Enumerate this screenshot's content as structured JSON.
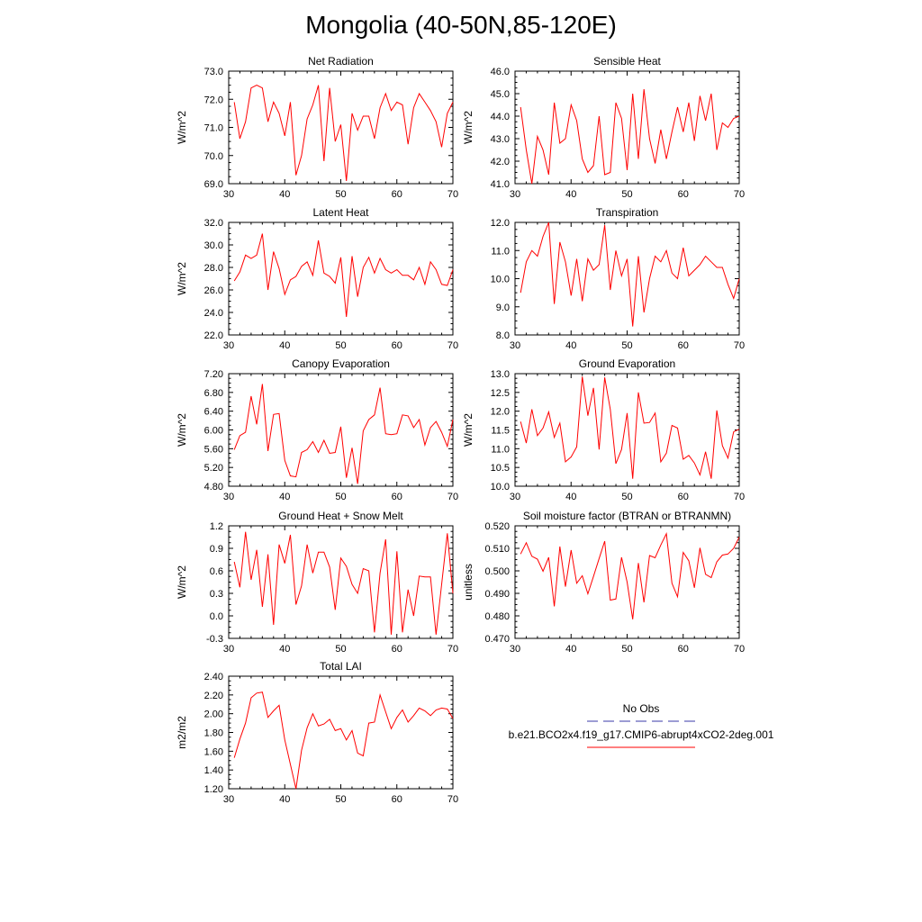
{
  "title": "Mongolia (40-50N,85-120E)",
  "legend": {
    "obs_label": "No Obs",
    "model_label": "b.e21.BCO2x4.f19_g17.CMIP6-abrupt4xCO2-2deg.001",
    "obs_color": "#3a3aa8",
    "model_color": "#ff0000"
  },
  "chart_data": [
    {
      "type": "line",
      "title": "Net Radiation",
      "ylabel": "W/m^2",
      "xlim": [
        30,
        70
      ],
      "ylim": [
        69.0,
        73.0
      ],
      "xticks": [
        30,
        40,
        50,
        60,
        70
      ],
      "yticks": [
        69.0,
        70.0,
        71.0,
        72.0,
        73.0
      ],
      "ydec": 1,
      "x": [
        31,
        32,
        33,
        34,
        35,
        36,
        37,
        38,
        39,
        40,
        41,
        42,
        43,
        44,
        45,
        46,
        47,
        48,
        49,
        50,
        51,
        52,
        53,
        54,
        55,
        56,
        57,
        58,
        59,
        60,
        61,
        62,
        63,
        64,
        65,
        66,
        67,
        68,
        69,
        70
      ],
      "series": [
        {
          "values": [
            71.9,
            70.6,
            71.2,
            72.4,
            72.5,
            72.4,
            71.2,
            71.9,
            71.5,
            70.7,
            71.9,
            69.3,
            70.0,
            71.3,
            71.8,
            72.5,
            69.8,
            72.4,
            70.5,
            71.1,
            69.1,
            71.5,
            70.9,
            71.4,
            71.4,
            70.6,
            71.7,
            72.2,
            71.6,
            71.9,
            71.8,
            70.4,
            71.7,
            72.2,
            71.9,
            71.6,
            71.2,
            70.3,
            71.5,
            71.9
          ]
        }
      ]
    },
    {
      "type": "line",
      "title": "Sensible Heat",
      "ylabel": "W/m^2",
      "xlim": [
        30,
        70
      ],
      "ylim": [
        41.0,
        46.0
      ],
      "xticks": [
        30,
        40,
        50,
        60,
        70
      ],
      "yticks": [
        41.0,
        42.0,
        43.0,
        44.0,
        45.0,
        46.0
      ],
      "ydec": 1,
      "x": [
        31,
        32,
        33,
        34,
        35,
        36,
        37,
        38,
        39,
        40,
        41,
        42,
        43,
        44,
        45,
        46,
        47,
        48,
        49,
        50,
        51,
        52,
        53,
        54,
        55,
        56,
        57,
        58,
        59,
        60,
        61,
        62,
        63,
        64,
        65,
        66,
        67,
        68,
        69,
        70
      ],
      "series": [
        {
          "values": [
            44.4,
            42.5,
            41.0,
            43.1,
            42.5,
            41.4,
            44.6,
            42.8,
            43.0,
            44.5,
            43.8,
            42.1,
            41.5,
            41.8,
            44.0,
            41.4,
            41.5,
            44.6,
            43.9,
            41.6,
            45.0,
            42.1,
            45.2,
            43.0,
            41.9,
            43.4,
            42.1,
            43.3,
            44.4,
            43.3,
            44.6,
            42.9,
            44.9,
            43.8,
            45.0,
            42.5,
            43.7,
            43.5,
            43.9,
            44.0
          ]
        }
      ]
    },
    {
      "type": "line",
      "title": "Latent Heat",
      "ylabel": "W/m^2",
      "xlim": [
        30,
        70
      ],
      "ylim": [
        22.0,
        32.0
      ],
      "xticks": [
        30,
        40,
        50,
        60,
        70
      ],
      "yticks": [
        22.0,
        24.0,
        26.0,
        28.0,
        30.0,
        32.0
      ],
      "ydec": 1,
      "x": [
        31,
        32,
        33,
        34,
        35,
        36,
        37,
        38,
        39,
        40,
        41,
        42,
        43,
        44,
        45,
        46,
        47,
        48,
        49,
        50,
        51,
        52,
        53,
        54,
        55,
        56,
        57,
        58,
        59,
        60,
        61,
        62,
        63,
        64,
        65,
        66,
        67,
        68,
        69,
        70
      ],
      "series": [
        {
          "values": [
            26.8,
            27.6,
            29.1,
            28.8,
            29.1,
            31.0,
            26.0,
            29.4,
            27.9,
            25.6,
            26.9,
            27.2,
            28.1,
            28.5,
            27.3,
            30.4,
            27.5,
            27.2,
            26.6,
            28.9,
            23.6,
            29.0,
            25.4,
            28.0,
            28.9,
            27.5,
            28.8,
            27.8,
            27.5,
            27.8,
            27.3,
            27.3,
            26.9,
            28.0,
            26.5,
            28.5,
            27.8,
            26.5,
            26.4,
            27.8
          ]
        }
      ]
    },
    {
      "type": "line",
      "title": "Transpiration",
      "ylabel": "",
      "xlim": [
        30,
        70
      ],
      "ylim": [
        8.0,
        12.0
      ],
      "xticks": [
        30,
        40,
        50,
        60,
        70
      ],
      "yticks": [
        8.0,
        9.0,
        10.0,
        11.0,
        12.0
      ],
      "ydec": 1,
      "x": [
        31,
        32,
        33,
        34,
        35,
        36,
        37,
        38,
        39,
        40,
        41,
        42,
        43,
        44,
        45,
        46,
        47,
        48,
        49,
        50,
        51,
        52,
        53,
        54,
        55,
        56,
        57,
        58,
        59,
        60,
        61,
        62,
        63,
        64,
        65,
        66,
        67,
        68,
        69,
        70
      ],
      "series": [
        {
          "values": [
            9.5,
            10.6,
            11.0,
            10.8,
            11.5,
            12.0,
            9.1,
            11.3,
            10.6,
            9.4,
            10.7,
            9.2,
            10.7,
            10.3,
            10.5,
            11.9,
            9.6,
            11.0,
            10.1,
            10.7,
            8.3,
            10.8,
            8.8,
            10.0,
            10.8,
            10.6,
            11.0,
            10.2,
            10.0,
            11.1,
            10.1,
            10.3,
            10.5,
            10.8,
            10.6,
            10.4,
            10.4,
            9.8,
            9.3,
            10.0
          ]
        }
      ]
    },
    {
      "type": "line",
      "title": "Canopy Evaporation",
      "ylabel": "W/m^2",
      "xlim": [
        30,
        70
      ],
      "ylim": [
        4.8,
        7.2
      ],
      "xticks": [
        30,
        40,
        50,
        60,
        70
      ],
      "yticks": [
        4.8,
        5.2,
        5.6,
        6.0,
        6.4,
        6.8,
        7.2
      ],
      "ydec": 2,
      "x": [
        31,
        32,
        33,
        34,
        35,
        36,
        37,
        38,
        39,
        40,
        41,
        42,
        43,
        44,
        45,
        46,
        47,
        48,
        49,
        50,
        51,
        52,
        53,
        54,
        55,
        56,
        57,
        58,
        59,
        60,
        61,
        62,
        63,
        64,
        65,
        66,
        67,
        68,
        69,
        70
      ],
      "series": [
        {
          "values": [
            5.58,
            5.88,
            5.95,
            6.72,
            6.12,
            6.98,
            5.55,
            6.33,
            6.35,
            5.35,
            5.02,
            5.0,
            5.52,
            5.58,
            5.75,
            5.52,
            5.78,
            5.5,
            5.52,
            6.07,
            4.98,
            5.62,
            4.85,
            5.98,
            6.22,
            6.32,
            6.9,
            5.92,
            5.9,
            5.92,
            6.32,
            6.3,
            6.05,
            6.22,
            5.68,
            6.05,
            6.18,
            5.95,
            5.65,
            6.22
          ]
        }
      ]
    },
    {
      "type": "line",
      "title": "Ground Evaporation",
      "ylabel": "W/m^2",
      "xlim": [
        30,
        70
      ],
      "ylim": [
        10.0,
        13.0
      ],
      "xticks": [
        30,
        40,
        50,
        60,
        70
      ],
      "yticks": [
        10.0,
        10.5,
        11.0,
        11.5,
        12.0,
        12.5,
        13.0
      ],
      "ydec": 1,
      "x": [
        31,
        32,
        33,
        34,
        35,
        36,
        37,
        38,
        39,
        40,
        41,
        42,
        43,
        44,
        45,
        46,
        47,
        48,
        49,
        50,
        51,
        52,
        53,
        54,
        55,
        56,
        57,
        58,
        59,
        60,
        61,
        62,
        63,
        64,
        65,
        66,
        67,
        68,
        69,
        70
      ],
      "series": [
        {
          "values": [
            11.72,
            11.15,
            12.05,
            11.35,
            11.55,
            11.98,
            11.3,
            11.68,
            10.65,
            10.78,
            11.05,
            12.92,
            11.88,
            12.62,
            10.98,
            12.9,
            12.05,
            10.6,
            10.98,
            11.95,
            10.2,
            12.5,
            11.68,
            11.7,
            11.95,
            10.65,
            10.88,
            11.62,
            11.55,
            10.72,
            10.82,
            10.62,
            10.3,
            10.92,
            10.2,
            12.02,
            11.08,
            10.75,
            11.45,
            11.52
          ]
        }
      ]
    },
    {
      "type": "line",
      "title": "Ground Heat + Snow Melt",
      "ylabel": "W/m^2",
      "xlim": [
        30,
        70
      ],
      "ylim": [
        -0.3,
        1.2
      ],
      "xticks": [
        30,
        40,
        50,
        60,
        70
      ],
      "yticks": [
        -0.3,
        0.0,
        0.3,
        0.6,
        0.9,
        1.2
      ],
      "ydec": 1,
      "x": [
        31,
        32,
        33,
        34,
        35,
        36,
        37,
        38,
        39,
        40,
        41,
        42,
        43,
        44,
        45,
        46,
        47,
        48,
        49,
        50,
        51,
        52,
        53,
        54,
        55,
        56,
        57,
        58,
        59,
        60,
        61,
        62,
        63,
        64,
        65,
        66,
        67,
        68,
        69,
        70
      ],
      "series": [
        {
          "values": [
            0.72,
            0.38,
            1.12,
            0.48,
            0.88,
            0.12,
            0.82,
            -0.12,
            0.95,
            0.7,
            1.08,
            0.15,
            0.4,
            0.95,
            0.57,
            0.85,
            0.85,
            0.65,
            0.08,
            0.77,
            0.66,
            0.42,
            0.3,
            0.63,
            0.6,
            -0.22,
            0.57,
            1.02,
            -0.25,
            0.86,
            -0.22,
            0.35,
            0.0,
            0.53,
            0.52,
            0.52,
            -0.25,
            0.42,
            1.1,
            0.3
          ]
        }
      ]
    },
    {
      "type": "line",
      "title": "Soil moisture factor (BTRAN or BTRANMN)",
      "ylabel": "unitless",
      "xlim": [
        30,
        70
      ],
      "ylim": [
        0.47,
        0.52
      ],
      "xticks": [
        30,
        40,
        50,
        60,
        70
      ],
      "yticks": [
        0.47,
        0.48,
        0.49,
        0.5,
        0.51,
        0.52
      ],
      "ydec": 3,
      "x": [
        31,
        32,
        33,
        34,
        35,
        36,
        37,
        38,
        39,
        40,
        41,
        42,
        43,
        44,
        45,
        46,
        47,
        48,
        49,
        50,
        51,
        52,
        53,
        54,
        55,
        56,
        57,
        58,
        59,
        60,
        61,
        62,
        63,
        64,
        65,
        66,
        67,
        68,
        69,
        70
      ],
      "series": [
        {
          "values": [
            0.5075,
            0.5125,
            0.5065,
            0.5052,
            0.4998,
            0.506,
            0.4842,
            0.5108,
            0.493,
            0.5092,
            0.4945,
            0.4978,
            0.4898,
            0.4975,
            0.5055,
            0.5132,
            0.487,
            0.4875,
            0.506,
            0.495,
            0.4785,
            0.5035,
            0.486,
            0.5068,
            0.5058,
            0.5115,
            0.5165,
            0.4945,
            0.4885,
            0.5082,
            0.5045,
            0.4925,
            0.5102,
            0.4985,
            0.497,
            0.504,
            0.507,
            0.5075,
            0.51,
            0.515
          ]
        }
      ]
    },
    {
      "type": "line",
      "title": "Total LAI",
      "ylabel": "m2/m2",
      "xlim": [
        30,
        70
      ],
      "ylim": [
        1.2,
        2.4
      ],
      "xticks": [
        30,
        40,
        50,
        60,
        70
      ],
      "yticks": [
        1.2,
        1.4,
        1.6,
        1.8,
        2.0,
        2.2,
        2.4
      ],
      "ydec": 2,
      "x": [
        31,
        32,
        33,
        34,
        35,
        36,
        37,
        38,
        39,
        40,
        41,
        42,
        43,
        44,
        45,
        46,
        47,
        48,
        49,
        50,
        51,
        52,
        53,
        54,
        55,
        56,
        57,
        58,
        59,
        60,
        61,
        62,
        63,
        64,
        65,
        66,
        67,
        68,
        69,
        70
      ],
      "series": [
        {
          "values": [
            1.53,
            1.73,
            1.9,
            2.17,
            2.22,
            2.23,
            1.96,
            2.03,
            2.09,
            1.72,
            1.46,
            1.2,
            1.61,
            1.85,
            2.0,
            1.87,
            1.89,
            1.94,
            1.82,
            1.84,
            1.72,
            1.82,
            1.58,
            1.55,
            1.9,
            1.91,
            2.2,
            2.02,
            1.84,
            1.96,
            2.04,
            1.91,
            1.98,
            2.06,
            2.03,
            1.98,
            2.04,
            2.06,
            2.05,
            1.95
          ]
        }
      ]
    }
  ]
}
